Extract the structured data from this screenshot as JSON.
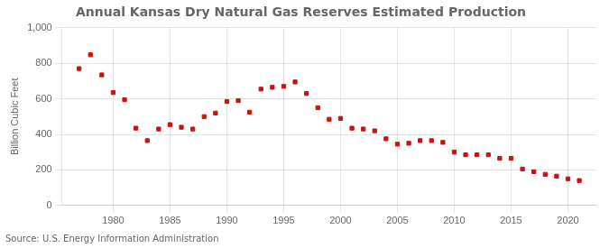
{
  "chart_data": {
    "type": "scatter",
    "title": "Annual Kansas Dry Natural Gas Reserves Estimated Production",
    "ylabel": "Billion Cubic Feet",
    "annotations": [
      "Source: U.S. Energy Information Administration"
    ],
    "x": [
      1977,
      1978,
      1979,
      1980,
      1981,
      1982,
      1983,
      1984,
      1985,
      1986,
      1987,
      1988,
      1989,
      1990,
      1991,
      1992,
      1993,
      1994,
      1995,
      1996,
      1997,
      1998,
      1999,
      2000,
      2001,
      2002,
      2003,
      2004,
      2005,
      2006,
      2007,
      2008,
      2009,
      2010,
      2011,
      2012,
      2013,
      2014,
      2015,
      2016,
      2017,
      2018,
      2019,
      2020,
      2021
    ],
    "values": [
      770,
      848,
      735,
      635,
      595,
      435,
      365,
      430,
      455,
      440,
      430,
      500,
      520,
      585,
      590,
      525,
      655,
      665,
      670,
      695,
      630,
      550,
      485,
      490,
      435,
      430,
      420,
      375,
      345,
      350,
      365,
      365,
      355,
      300,
      285,
      285,
      285,
      265,
      265,
      205,
      190,
      175,
      165,
      150,
      140
    ],
    "color": "#cc1111",
    "marker": "square",
    "xlim": [
      1975.5,
      2022.5
    ],
    "xticks": [
      1980,
      1985,
      1990,
      1995,
      2000,
      2005,
      2010,
      2015,
      2020
    ],
    "ylim": [
      0,
      1000
    ],
    "yticks": [
      0,
      200,
      400,
      600,
      800,
      {
        "value": 1000,
        "label": "1,000"
      }
    ],
    "grid": true
  }
}
